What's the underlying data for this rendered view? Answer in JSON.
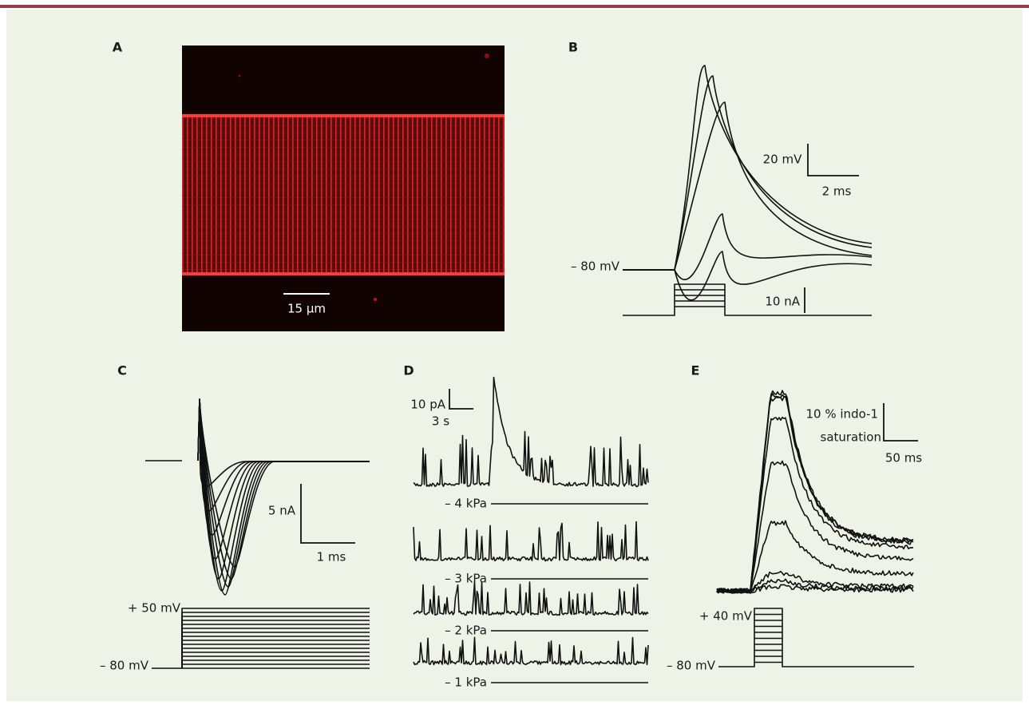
{
  "panels": {
    "a": {
      "label": "A",
      "scale": "15 µm"
    },
    "b": {
      "label": "B",
      "voltage_scale": "20 mV",
      "time_scale": "2 ms",
      "holding": "– 80 mV",
      "current_scale": "10 nA"
    },
    "c": {
      "label": "C",
      "current_scale": "5 nA",
      "time_scale": "1 ms",
      "step_top": "+ 50 mV",
      "holding": "– 80 mV"
    },
    "d": {
      "label": "D",
      "current_scale": "10 pA",
      "time_scale": "3 s",
      "pressures": [
        "– 4 kPa",
        "– 3 kPa",
        "– 2 kPa",
        "– 1 kPa"
      ]
    },
    "e": {
      "label": "E",
      "fluorescence_scale": [
        "10 % indo-1",
        "saturation"
      ],
      "time_scale": "50 ms",
      "step_top": "+ 40 mV",
      "holding": "– 80 mV"
    }
  }
}
